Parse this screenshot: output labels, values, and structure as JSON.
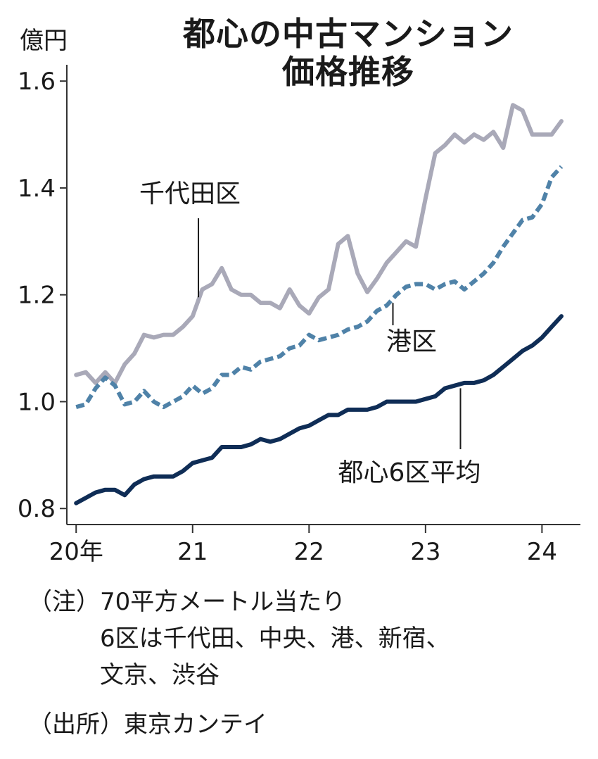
{
  "chart_data": {
    "type": "line",
    "title_line1": "都心の中古マンション",
    "title_line2": "価格推移",
    "ylabel": "億円",
    "ylim": [
      0.77,
      1.62
    ],
    "xlim": [
      2019.92,
      2024.33
    ],
    "yticks": [
      {
        "value": 0.8,
        "label": "0.8"
      },
      {
        "value": 1.0,
        "label": "1.0"
      },
      {
        "value": 1.2,
        "label": "1.2"
      },
      {
        "value": 1.4,
        "label": "1.4"
      },
      {
        "value": 1.6,
        "label": "1.6"
      }
    ],
    "xticks": [
      {
        "value": 2020,
        "label": "20年"
      },
      {
        "value": 2021,
        "label": "21"
      },
      {
        "value": 2022,
        "label": "22"
      },
      {
        "value": 2023,
        "label": "23"
      },
      {
        "value": 2024,
        "label": "24"
      }
    ],
    "series": [
      {
        "name": "千代田区",
        "color": "#a9a9b8",
        "style": "solid",
        "x": [
          2020.0,
          2020.083,
          2020.167,
          2020.25,
          2020.333,
          2020.417,
          2020.5,
          2020.583,
          2020.667,
          2020.75,
          2020.833,
          2020.917,
          2021.0,
          2021.083,
          2021.167,
          2021.25,
          2021.333,
          2021.417,
          2021.5,
          2021.583,
          2021.667,
          2021.75,
          2021.833,
          2021.917,
          2022.0,
          2022.083,
          2022.167,
          2022.25,
          2022.333,
          2022.417,
          2022.5,
          2022.583,
          2022.667,
          2022.75,
          2022.833,
          2022.917,
          2023.0,
          2023.083,
          2023.167,
          2023.25,
          2023.333,
          2023.417,
          2023.5,
          2023.583,
          2023.667,
          2023.75,
          2023.833,
          2023.917,
          2024.0,
          2024.083,
          2024.167
        ],
        "values": [
          1.05,
          1.055,
          1.035,
          1.055,
          1.035,
          1.07,
          1.09,
          1.125,
          1.12,
          1.125,
          1.125,
          1.14,
          1.16,
          1.21,
          1.22,
          1.25,
          1.21,
          1.2,
          1.2,
          1.185,
          1.185,
          1.175,
          1.21,
          1.18,
          1.165,
          1.195,
          1.21,
          1.295,
          1.31,
          1.24,
          1.205,
          1.23,
          1.26,
          1.28,
          1.3,
          1.29,
          1.38,
          1.465,
          1.48,
          1.5,
          1.485,
          1.5,
          1.49,
          1.505,
          1.475,
          1.555,
          1.545,
          1.5,
          1.5,
          1.5,
          1.525
        ]
      },
      {
        "name": "港区",
        "color": "#4f82a8",
        "style": "dashed",
        "x": [
          2020.0,
          2020.083,
          2020.167,
          2020.25,
          2020.333,
          2020.417,
          2020.5,
          2020.583,
          2020.667,
          2020.75,
          2020.833,
          2020.917,
          2021.0,
          2021.083,
          2021.167,
          2021.25,
          2021.333,
          2021.417,
          2021.5,
          2021.583,
          2021.667,
          2021.75,
          2021.833,
          2021.917,
          2022.0,
          2022.083,
          2022.167,
          2022.25,
          2022.333,
          2022.417,
          2022.5,
          2022.583,
          2022.667,
          2022.75,
          2022.833,
          2022.917,
          2023.0,
          2023.083,
          2023.167,
          2023.25,
          2023.333,
          2023.417,
          2023.5,
          2023.583,
          2023.667,
          2023.75,
          2023.833,
          2023.917,
          2024.0,
          2024.083,
          2024.167
        ],
        "values": [
          0.99,
          0.995,
          1.025,
          1.045,
          1.03,
          0.995,
          1.0,
          1.02,
          1.0,
          0.99,
          1.0,
          1.01,
          1.03,
          1.015,
          1.025,
          1.05,
          1.05,
          1.065,
          1.06,
          1.075,
          1.08,
          1.085,
          1.1,
          1.105,
          1.125,
          1.115,
          1.12,
          1.125,
          1.135,
          1.14,
          1.15,
          1.17,
          1.18,
          1.2,
          1.215,
          1.22,
          1.22,
          1.21,
          1.22,
          1.225,
          1.21,
          1.225,
          1.24,
          1.26,
          1.29,
          1.315,
          1.34,
          1.345,
          1.37,
          1.42,
          1.44
        ]
      },
      {
        "name": "都心6区平均",
        "color": "#0f2d56",
        "style": "solid",
        "x": [
          2020.0,
          2020.083,
          2020.167,
          2020.25,
          2020.333,
          2020.417,
          2020.5,
          2020.583,
          2020.667,
          2020.75,
          2020.833,
          2020.917,
          2021.0,
          2021.083,
          2021.167,
          2021.25,
          2021.333,
          2021.417,
          2021.5,
          2021.583,
          2021.667,
          2021.75,
          2021.833,
          2021.917,
          2022.0,
          2022.083,
          2022.167,
          2022.25,
          2022.333,
          2022.417,
          2022.5,
          2022.583,
          2022.667,
          2022.75,
          2022.833,
          2022.917,
          2023.0,
          2023.083,
          2023.167,
          2023.25,
          2023.333,
          2023.417,
          2023.5,
          2023.583,
          2023.667,
          2023.75,
          2023.833,
          2023.917,
          2024.0,
          2024.083,
          2024.167
        ],
        "values": [
          0.81,
          0.82,
          0.83,
          0.835,
          0.835,
          0.825,
          0.845,
          0.855,
          0.86,
          0.86,
          0.86,
          0.87,
          0.885,
          0.89,
          0.895,
          0.915,
          0.915,
          0.915,
          0.92,
          0.93,
          0.925,
          0.93,
          0.94,
          0.95,
          0.955,
          0.965,
          0.975,
          0.975,
          0.985,
          0.985,
          0.985,
          0.99,
          1.0,
          1.0,
          1.0,
          1.0,
          1.005,
          1.01,
          1.025,
          1.03,
          1.035,
          1.035,
          1.04,
          1.05,
          1.065,
          1.08,
          1.095,
          1.105,
          1.12,
          1.14,
          1.16
        ]
      }
    ],
    "annotations": [
      {
        "text": "千代田区",
        "series": "千代田区",
        "anchor_x": 2021.05
      },
      {
        "text": "港区",
        "series": "港区",
        "anchor_x": 2022.72
      },
      {
        "text": "都心6区平均",
        "series": "都心6区平均",
        "anchor_x": 2023.3
      }
    ]
  },
  "notes": {
    "line1": "（注）70平方メートル当たり",
    "line2": "　　　6区は千代田、中央、港、新宿、",
    "line3": "　　　文京、渋谷",
    "line4": "（出所）東京カンテイ"
  }
}
